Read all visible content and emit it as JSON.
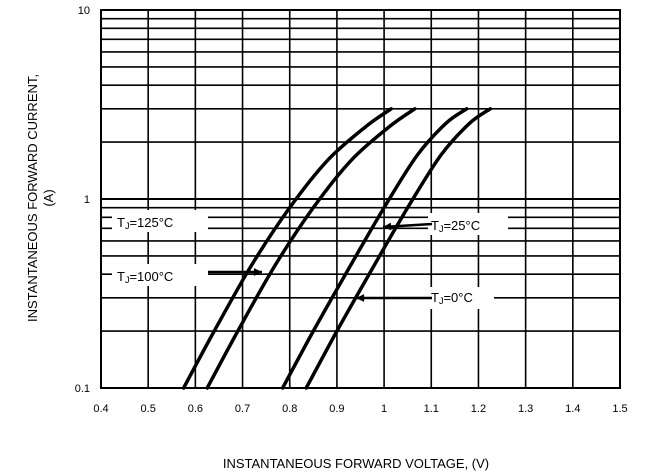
{
  "chart_data": {
    "type": "line",
    "title": "",
    "xlabel": "INSTANTANEOUS FORWARD VOLTAGE, (V)",
    "ylabel_line1": "INSTANTANEOUS FORWARD CURRENT,",
    "ylabel_line2": "(A)",
    "xlim": [
      0.4,
      1.5
    ],
    "ylim": [
      0.1,
      10
    ],
    "y_scale": "log",
    "grid": true,
    "x_ticks": [
      "0.4",
      "0.5",
      "0.6",
      "0.7",
      "0.8",
      "0.9",
      "1",
      "1.1",
      "1.2",
      "1.3",
      "1.4",
      "1.5"
    ],
    "y_ticks": [
      {
        "value": 0.1,
        "label": "0.1"
      },
      {
        "value": 1,
        "label": "1"
      },
      {
        "value": 10,
        "label": "10"
      }
    ],
    "series": [
      {
        "name": "TJ=125°C",
        "x": [
          0.575,
          0.64,
          0.72,
          0.8,
          0.88,
          0.96,
          1.015
        ],
        "y": [
          0.1,
          0.2,
          0.45,
          0.9,
          1.6,
          2.4,
          3.0
        ]
      },
      {
        "name": "TJ=100°C",
        "x": [
          0.625,
          0.69,
          0.77,
          0.85,
          0.93,
          1.01,
          1.065
        ],
        "y": [
          0.1,
          0.2,
          0.45,
          0.9,
          1.6,
          2.4,
          3.0
        ]
      },
      {
        "name": "TJ=25°C",
        "x": [
          0.785,
          0.85,
          0.93,
          1.0,
          1.07,
          1.13,
          1.175
        ],
        "y": [
          0.1,
          0.2,
          0.45,
          0.9,
          1.7,
          2.5,
          3.0
        ]
      },
      {
        "name": "TJ=0°C",
        "x": [
          0.835,
          0.9,
          0.98,
          1.05,
          1.12,
          1.18,
          1.225
        ],
        "y": [
          0.1,
          0.2,
          0.45,
          0.9,
          1.7,
          2.5,
          3.0
        ]
      }
    ],
    "annotations": [
      {
        "label": "TJ=125°C",
        "series": "TJ=125°C"
      },
      {
        "label": "TJ=100°C",
        "series": "TJ=100°C"
      },
      {
        "label": "TJ=25°C",
        "series": "TJ=25°C"
      },
      {
        "label": "TJ=0°C",
        "series": "TJ=0°C"
      }
    ]
  }
}
